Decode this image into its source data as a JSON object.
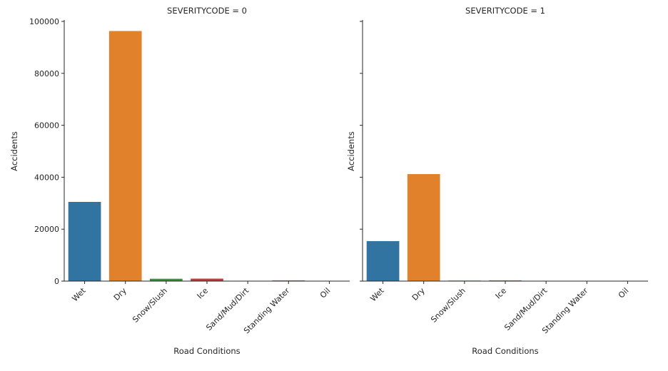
{
  "chart_data": [
    {
      "type": "bar",
      "title": "SEVERITYCODE = 0",
      "xlabel": "Road Conditions",
      "ylabel": "Accidents",
      "categories": [
        "Wet",
        "Dry",
        "Snow/Slush",
        "Ice",
        "Sand/Mud/Dirt",
        "Standing Water",
        "Oil"
      ],
      "values": [
        30500,
        96300,
        900,
        950,
        50,
        250,
        20
      ],
      "ylim": [
        0,
        100000
      ],
      "yticks": [
        0,
        20000,
        40000,
        60000,
        80000,
        100000
      ],
      "ytick_labels": [
        "0",
        "20000",
        "40000",
        "60000",
        "80000",
        "100000"
      ],
      "colors": [
        "#3274a1",
        "#e1812c",
        "#3a923a",
        "#c03d3e",
        "#9372b2",
        "#845b53",
        "#d684bd"
      ],
      "grid": false
    },
    {
      "type": "bar",
      "title": "SEVERITYCODE = 1",
      "xlabel": "Road Conditions",
      "ylabel": "Accidents",
      "categories": [
        "Wet",
        "Dry",
        "Snow/Slush",
        "Ice",
        "Sand/Mud/Dirt",
        "Standing Water",
        "Oil"
      ],
      "values": [
        15400,
        41200,
        200,
        250,
        30,
        50,
        10
      ],
      "ylim": [
        0,
        100000
      ],
      "yticks": [
        0,
        20000,
        40000,
        60000,
        80000,
        100000
      ],
      "colors": [
        "#3274a1",
        "#e1812c",
        "#3a923a",
        "#c03d3e",
        "#9372b2",
        "#845b53",
        "#d684bd"
      ],
      "grid": false
    }
  ]
}
